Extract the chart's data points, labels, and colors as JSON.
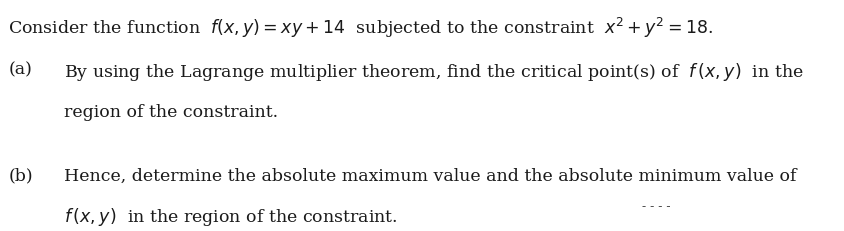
{
  "background_color": "#ffffff",
  "title_line": "Consider the function  $f(x, y) = xy+14$  subjected to the constraint  $x^2 + y^2 = 18$.",
  "part_a_label": "(a)",
  "part_a_line1": "By using the Lagrange multiplier theorem, find the critical point(s) of  $f\\,(x, y)$  in the",
  "part_a_line2": "region of the constraint.",
  "part_b_label": "(b)",
  "part_b_line1": "Hence, determine the absolute maximum value and the absolute minimum value of",
  "part_b_line2": "$f\\,(x, y)$  in the region of the constraint.",
  "dashes": "- - - -",
  "font_size_title": 12.5,
  "font_size_body": 12.5,
  "text_color": "#1a1a1a"
}
